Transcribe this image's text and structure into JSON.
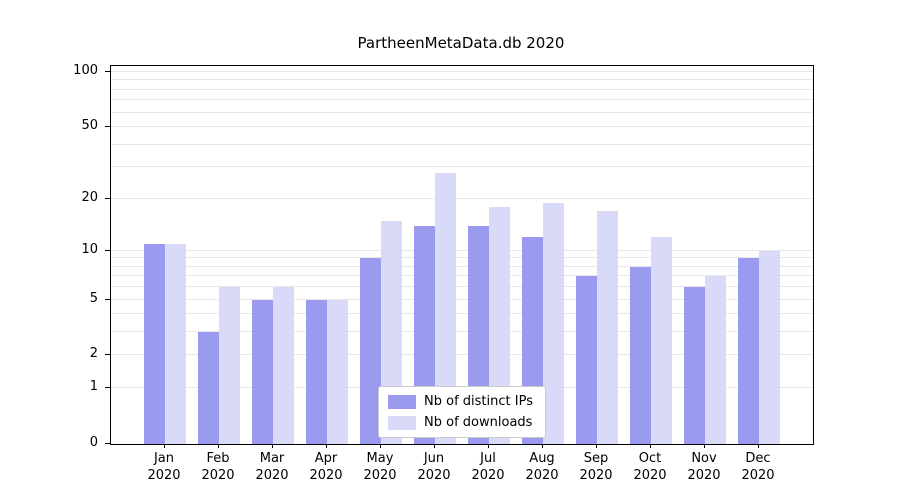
{
  "chart_data": {
    "type": "bar",
    "title": "PartheenMetaData.db 2020",
    "categories": [
      "Jan",
      "Feb",
      "Mar",
      "Apr",
      "May",
      "Jun",
      "Jul",
      "Aug",
      "Sep",
      "Oct",
      "Nov",
      "Dec"
    ],
    "year": "2020",
    "series": [
      {
        "name": "Nb of distinct IPs",
        "color": "#9a9aee",
        "values": [
          11,
          3,
          5,
          5,
          9,
          14,
          14,
          12,
          7,
          8,
          6,
          9
        ]
      },
      {
        "name": "Nb of downloads",
        "color": "#d9d9f8",
        "values": [
          11,
          6,
          6,
          5,
          15,
          28,
          18,
          19,
          17,
          12,
          7,
          10
        ]
      }
    ],
    "yscale": "log1p",
    "ylim": [
      0,
      100
    ],
    "y_ticks": [
      0,
      1,
      2,
      5,
      10,
      20,
      50,
      100
    ],
    "y_gridlines": [
      1,
      2,
      3,
      4,
      5,
      6,
      7,
      8,
      9,
      10,
      20,
      30,
      40,
      50,
      60,
      70,
      80,
      90,
      100
    ],
    "grid": "horizontal",
    "legend_position": "lower center"
  }
}
